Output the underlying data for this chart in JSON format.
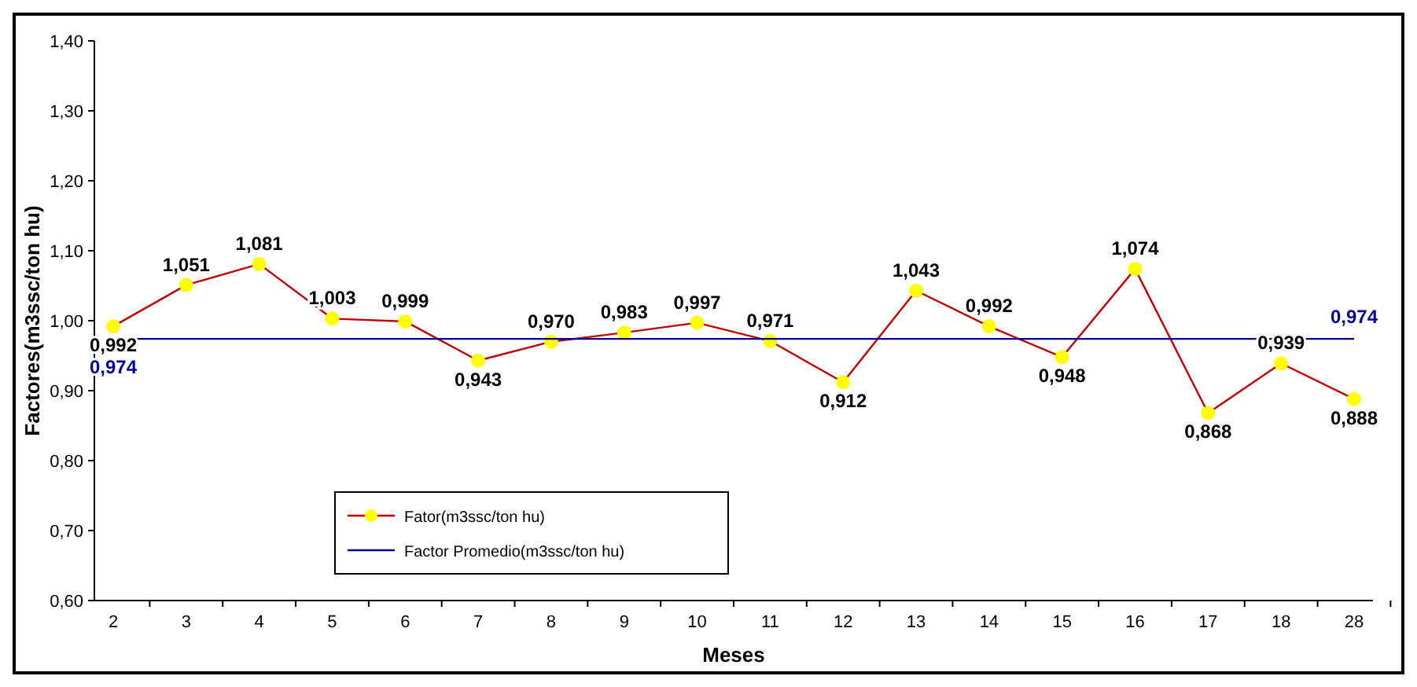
{
  "chart_data": {
    "type": "line",
    "xlabel": "Meses",
    "ylabel": "Factores(m3ssc/ton hu)",
    "categories": [
      "2",
      "3",
      "4",
      "5",
      "6",
      "7",
      "8",
      "9",
      "10",
      "11",
      "12",
      "13",
      "14",
      "15",
      "16",
      "17",
      "18",
      "28"
    ],
    "series": [
      {
        "name": "Fator(m3ssc/ton hu)",
        "color": "#c00000",
        "marker": "circle",
        "values": [
          0.992,
          1.051,
          1.081,
          1.003,
          0.999,
          0.943,
          0.97,
          0.983,
          0.997,
          0.971,
          0.912,
          1.043,
          0.992,
          0.948,
          1.074,
          0.868,
          0.939,
          0.888
        ],
        "value_labels": [
          "0,992",
          "1,051",
          "1,081",
          "1,003",
          "0,999",
          "0,943",
          "0,970",
          "0,983",
          "0,997",
          "0,971",
          "0,912",
          "1,043",
          "0,992",
          "0,948",
          "1,074",
          "0,868",
          "0,939",
          "0,888"
        ]
      },
      {
        "name": "Factor Promedio(m3ssc/ton hu)",
        "color": "#000099",
        "values": [
          0.974,
          0.974,
          0.974,
          0.974,
          0.974,
          0.974,
          0.974,
          0.974,
          0.974,
          0.974,
          0.974,
          0.974,
          0.974,
          0.974,
          0.974,
          0.974,
          0.974,
          0.974
        ],
        "value_labels": [
          "0,974",
          null,
          null,
          null,
          null,
          null,
          null,
          null,
          null,
          null,
          null,
          null,
          null,
          null,
          null,
          null,
          null,
          "0,974"
        ]
      }
    ],
    "ylim": [
      0.6,
      1.4
    ],
    "yticks": [
      {
        "value": 0.6,
        "label": "0,60"
      },
      {
        "value": 0.7,
        "label": "0,70"
      },
      {
        "value": 0.8,
        "label": "0,80"
      },
      {
        "value": 0.9,
        "label": "0,90"
      },
      {
        "value": 1.0,
        "label": "1,00"
      },
      {
        "value": 1.1,
        "label": "1,10"
      },
      {
        "value": 1.2,
        "label": "1,20"
      },
      {
        "value": 1.3,
        "label": "1,30"
      },
      {
        "value": 1.4,
        "label": "1,40"
      }
    ],
    "legend": "bottom left"
  }
}
